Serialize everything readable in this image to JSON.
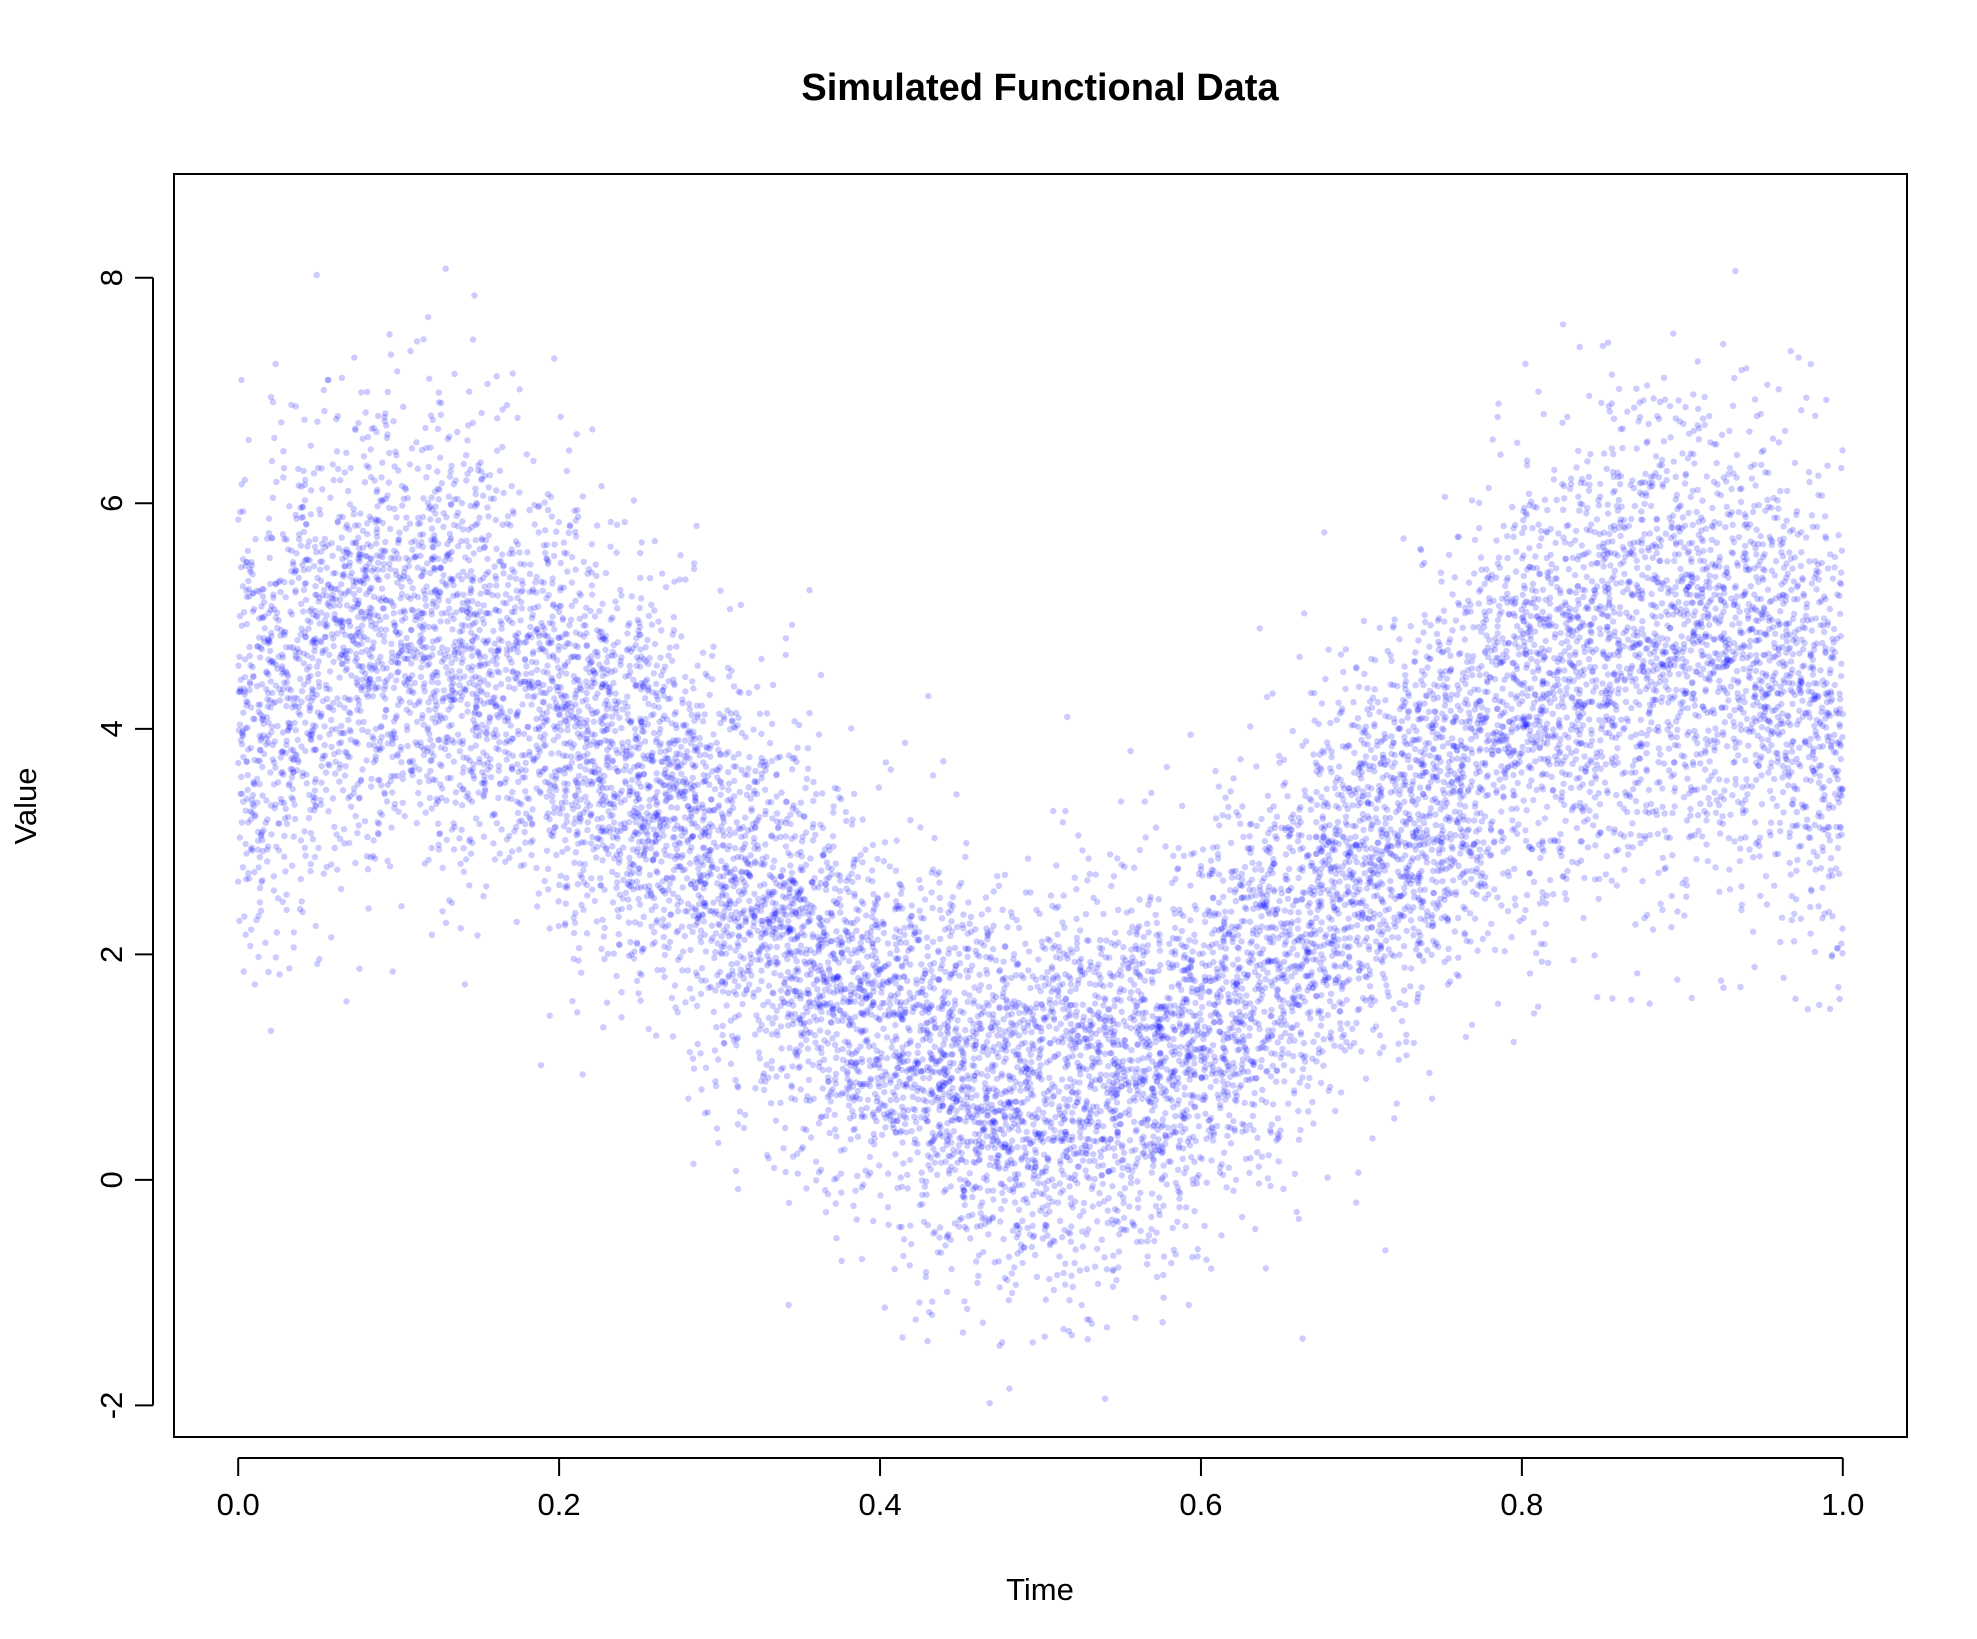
{
  "chart_data": {
    "type": "scatter",
    "title": "Simulated Functional Data",
    "xlabel": "Time",
    "ylabel": "Value",
    "xlim": [
      -0.04,
      1.04
    ],
    "ylim": [
      -2.28,
      8.92
    ],
    "xticks": [
      0.0,
      0.2,
      0.4,
      0.6,
      0.8,
      1.0
    ],
    "xtick_labels": [
      "0.0",
      "0.2",
      "0.4",
      "0.6",
      "0.8",
      "1.0"
    ],
    "yticks": [
      -2,
      0,
      2,
      4,
      6,
      8
    ],
    "ytick_labels": [
      "-2",
      "0",
      "2",
      "4",
      "6",
      "8"
    ],
    "grid": false,
    "legend": "none",
    "point_color": "#0000ff",
    "point_alpha": 0.2,
    "series": [
      {
        "x": [
          0.0,
          0.05,
          0.1,
          0.15,
          0.2,
          0.25,
          0.3,
          0.35,
          0.4,
          0.45,
          0.5,
          0.55,
          0.6,
          0.65,
          0.7,
          0.75,
          0.8,
          0.85,
          0.9,
          0.95,
          1.0
        ],
        "y": [
          4.0,
          4.6,
          4.9,
          4.7,
          4.2,
          3.5,
          2.8,
          2.1,
          1.4,
          0.9,
          0.8,
          0.9,
          1.3,
          2.0,
          2.8,
          3.5,
          4.2,
          4.6,
          4.9,
          4.6,
          4.0
        ],
        "spread_sd": [
          1.1,
          1.0,
          1.0,
          1.0,
          0.95,
          0.9,
          0.9,
          0.85,
          0.85,
          0.85,
          0.85,
          0.85,
          0.85,
          0.85,
          0.9,
          0.9,
          0.95,
          1.0,
          1.0,
          1.05,
          1.1
        ]
      }
    ]
  }
}
